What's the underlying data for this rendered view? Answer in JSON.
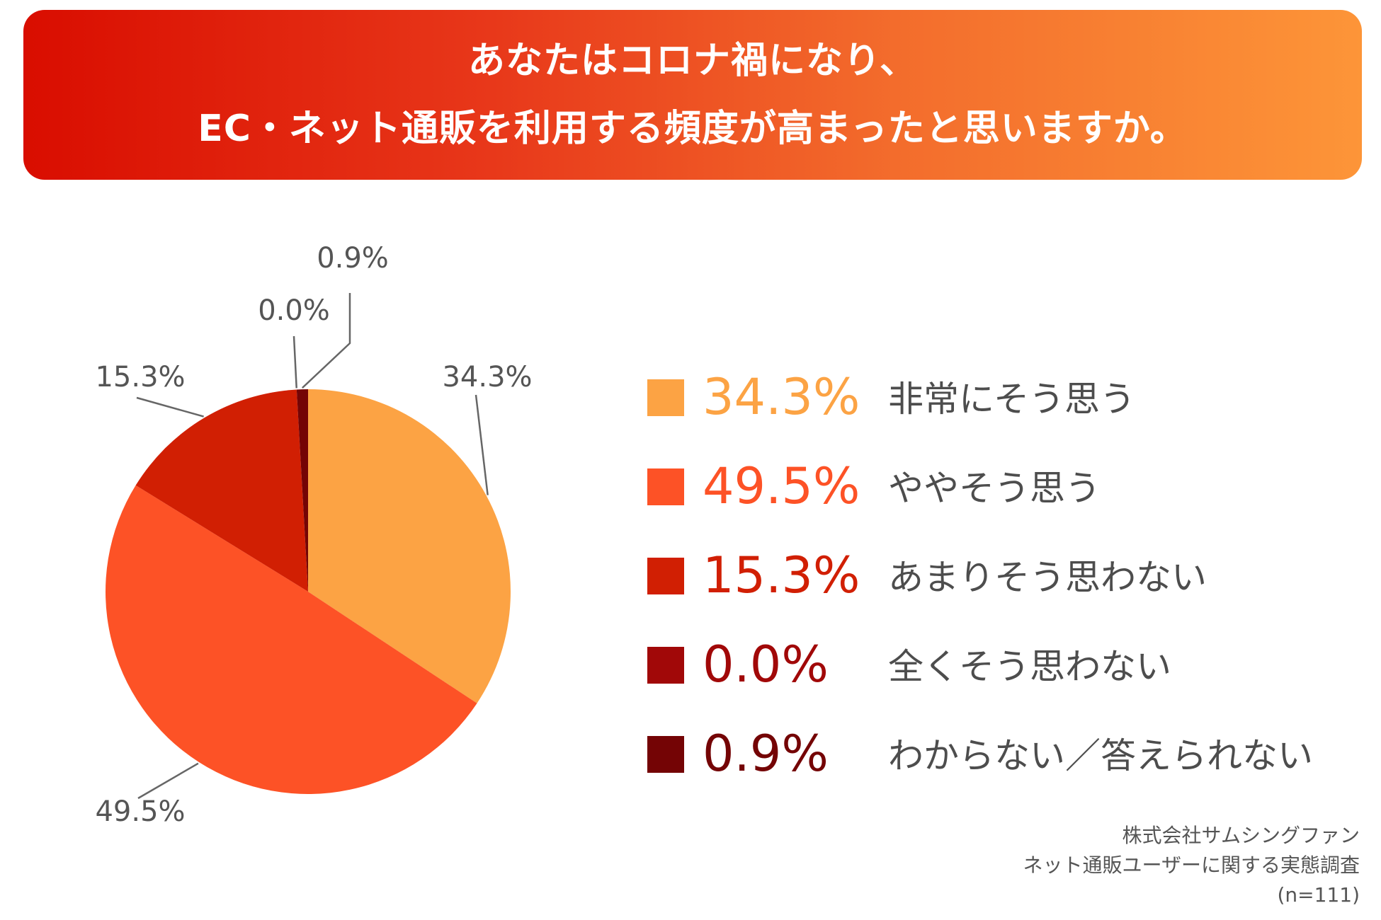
{
  "title": {
    "line1": "あなたはコロナ禍になり、",
    "line2": "EC・ネット通販を利用する頻度が高まったと思いますか。"
  },
  "chart_data": {
    "type": "pie",
    "title": "あなたはコロナ禍になり、EC・ネット通販を利用する頻度が高まったと思いますか。",
    "categories": [
      "非常にそう思う",
      "ややそう思う",
      "あまりそう思わない",
      "全くそう思わない",
      "わからない／答えられない"
    ],
    "values": [
      34.3,
      49.5,
      15.3,
      0.0,
      0.9
    ],
    "value_labels": [
      "34.3%",
      "49.5%",
      "15.3%",
      "0.0%",
      "0.9%"
    ],
    "colors": [
      "#fca344",
      "#fd5226",
      "#d11f03",
      "#a10808",
      "#740405"
    ],
    "start": "12 o'clock, clockwise",
    "legend_position": "right"
  },
  "legend": [
    {
      "value": "34.3%",
      "label": "非常にそう思う",
      "color": "#fca344"
    },
    {
      "value": "49.5%",
      "label": "ややそう思う",
      "color": "#fd5226"
    },
    {
      "value": "15.3%",
      "label": "あまりそう思わない",
      "color": "#d11f03"
    },
    {
      "value": "0.0%",
      "label": "全くそう思わない",
      "color": "#a10808"
    },
    {
      "value": "0.9%",
      "label": "わからない／答えられない",
      "color": "#740405"
    }
  ],
  "source": {
    "line1": "株式会社サムシングファン",
    "line2": "ネット通販ユーザーに関する実態調査",
    "line3": "(n=111)"
  }
}
